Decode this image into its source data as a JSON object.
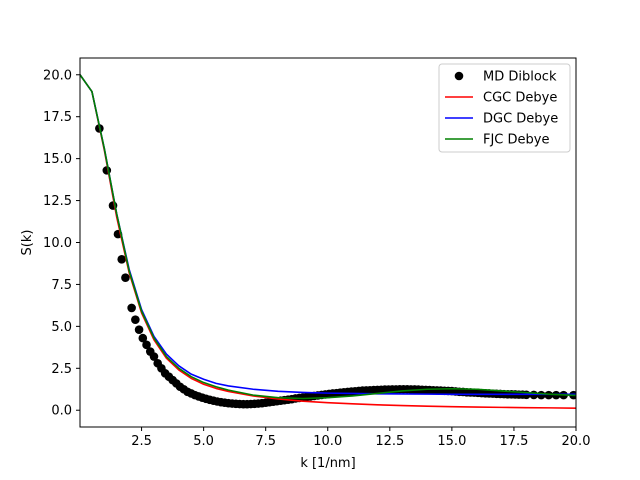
{
  "chart_data": {
    "type": "line",
    "title": "",
    "xlabel": "k [1/nm]",
    "ylabel": "S(k)",
    "xlim": [
      0.02,
      20.0
    ],
    "ylim": [
      -1.0,
      21.0
    ],
    "xticks": [
      2.5,
      5.0,
      7.5,
      10.0,
      12.5,
      15.0,
      17.5,
      20.0
    ],
    "xtick_labels": [
      "2.5",
      "5.0",
      "7.5",
      "10.0",
      "12.5",
      "15.0",
      "17.5",
      "20.0"
    ],
    "yticks": [
      0.0,
      2.5,
      5.0,
      7.5,
      10.0,
      12.5,
      15.0,
      17.5,
      20.0
    ],
    "ytick_labels": [
      "0.0",
      "2.5",
      "5.0",
      "7.5",
      "10.0",
      "12.5",
      "15.0",
      "17.5",
      "20.0"
    ],
    "grid": false,
    "legend_position": "top-right",
    "series": [
      {
        "name": "MD Diblock",
        "kind": "scatter",
        "color": "#000000",
        "x": [
          0.8,
          1.1,
          1.35,
          1.55,
          1.7,
          1.85,
          2.1,
          2.25,
          2.4,
          2.55,
          2.7,
          2.85,
          3.0,
          3.15,
          3.3,
          3.45,
          3.6,
          3.75,
          3.9,
          4.05,
          4.2,
          4.35,
          4.5,
          4.65,
          4.8,
          4.95,
          5.1,
          5.25,
          5.4,
          5.55,
          5.7,
          5.85,
          6.0,
          6.15,
          6.3,
          6.45,
          6.6,
          6.75,
          6.9,
          7.05,
          7.2,
          7.35,
          7.5,
          7.65,
          7.8,
          7.95,
          8.1,
          8.25,
          8.4,
          8.55,
          8.7,
          8.85,
          9.0,
          9.15,
          9.3,
          9.45,
          9.6,
          9.75,
          9.9,
          10.05,
          10.2,
          10.35,
          10.5,
          10.65,
          10.8,
          10.95,
          11.1,
          11.25,
          11.4,
          11.55,
          11.7,
          11.85,
          12.0,
          12.15,
          12.3,
          12.45,
          12.6,
          12.75,
          12.9,
          13.05,
          13.2,
          13.35,
          13.5,
          13.65,
          13.8,
          13.95,
          14.1,
          14.25,
          14.4,
          14.55,
          14.7,
          14.85,
          15.0,
          15.15,
          15.3,
          15.45,
          15.6,
          15.75,
          15.9,
          16.05,
          16.2,
          16.35,
          16.5,
          16.65,
          16.8,
          16.95,
          17.1,
          17.25,
          17.4,
          17.55,
          17.7,
          17.85,
          18.0,
          18.3,
          18.6,
          18.9,
          19.2,
          19.5,
          19.9
        ],
        "y": [
          16.8,
          14.3,
          12.2,
          10.5,
          9.0,
          7.9,
          6.1,
          5.4,
          4.8,
          4.3,
          3.9,
          3.5,
          3.2,
          2.8,
          2.5,
          2.2,
          2.0,
          1.8,
          1.6,
          1.4,
          1.25,
          1.1,
          1.0,
          0.9,
          0.82,
          0.75,
          0.68,
          0.62,
          0.57,
          0.52,
          0.48,
          0.45,
          0.42,
          0.4,
          0.38,
          0.37,
          0.36,
          0.36,
          0.37,
          0.38,
          0.4,
          0.42,
          0.45,
          0.48,
          0.51,
          0.54,
          0.57,
          0.6,
          0.63,
          0.66,
          0.7,
          0.73,
          0.76,
          0.79,
          0.82,
          0.85,
          0.88,
          0.91,
          0.94,
          0.97,
          1.0,
          1.02,
          1.05,
          1.07,
          1.09,
          1.11,
          1.13,
          1.15,
          1.17,
          1.18,
          1.19,
          1.2,
          1.21,
          1.22,
          1.23,
          1.23,
          1.24,
          1.24,
          1.25,
          1.25,
          1.25,
          1.24,
          1.24,
          1.23,
          1.22,
          1.21,
          1.2,
          1.19,
          1.18,
          1.17,
          1.16,
          1.15,
          1.14,
          1.12,
          1.1,
          1.09,
          1.07,
          1.06,
          1.05,
          1.04,
          1.02,
          1.01,
          1.0,
          0.99,
          0.98,
          0.97,
          0.96,
          0.95,
          0.95,
          0.94,
          0.93,
          0.93,
          0.92,
          0.91,
          0.9,
          0.9,
          0.9,
          0.9,
          0.9
        ]
      },
      {
        "name": "CGC Debye",
        "kind": "line",
        "color": "#ff0000",
        "x": [
          0.02,
          0.5,
          1.0,
          1.5,
          2.0,
          2.5,
          3.0,
          3.5,
          4.0,
          4.5,
          5.0,
          5.5,
          6.0,
          7.0,
          8.0,
          9.0,
          10.0,
          11.0,
          12.0,
          13.0,
          14.0,
          15.0,
          16.0,
          17.0,
          18.0,
          19.0,
          20.0
        ],
        "y": [
          20.0,
          19.0,
          15.5,
          11.5,
          8.2,
          5.8,
          4.2,
          3.1,
          2.4,
          1.9,
          1.55,
          1.3,
          1.12,
          0.85,
          0.67,
          0.54,
          0.45,
          0.38,
          0.32,
          0.28,
          0.24,
          0.21,
          0.19,
          0.17,
          0.15,
          0.14,
          0.12
        ]
      },
      {
        "name": "DGC Debye",
        "kind": "line",
        "color": "#0000ff",
        "x": [
          0.02,
          0.5,
          1.0,
          1.5,
          2.0,
          2.5,
          3.0,
          3.5,
          4.0,
          4.5,
          5.0,
          5.5,
          6.0,
          7.0,
          8.0,
          9.0,
          10.0,
          11.0,
          12.0,
          13.0,
          14.0,
          15.0,
          16.0,
          17.0,
          18.0,
          19.0,
          20.0
        ],
        "y": [
          20.0,
          19.0,
          15.6,
          11.7,
          8.4,
          6.0,
          4.4,
          3.35,
          2.65,
          2.15,
          1.85,
          1.6,
          1.45,
          1.25,
          1.13,
          1.06,
          1.02,
          1.0,
          0.98,
          0.97,
          0.96,
          0.95,
          0.95,
          0.95,
          0.95,
          0.95,
          0.95
        ]
      },
      {
        "name": "FJC Debye",
        "kind": "line",
        "color": "#008000",
        "x": [
          0.02,
          0.5,
          1.0,
          1.5,
          2.0,
          2.5,
          3.0,
          3.5,
          4.0,
          4.5,
          5.0,
          5.5,
          6.0,
          7.0,
          8.0,
          9.0,
          10.0,
          11.0,
          12.0,
          13.0,
          14.0,
          15.0,
          16.0,
          17.0,
          18.0,
          19.0,
          20.0
        ],
        "y": [
          20.0,
          19.0,
          15.6,
          11.7,
          8.3,
          5.9,
          4.3,
          3.2,
          2.5,
          2.0,
          1.65,
          1.4,
          1.2,
          0.9,
          0.75,
          0.7,
          0.75,
          0.85,
          1.0,
          1.15,
          1.25,
          1.28,
          1.25,
          1.15,
          1.05,
          0.95,
          0.88
        ]
      }
    ]
  }
}
